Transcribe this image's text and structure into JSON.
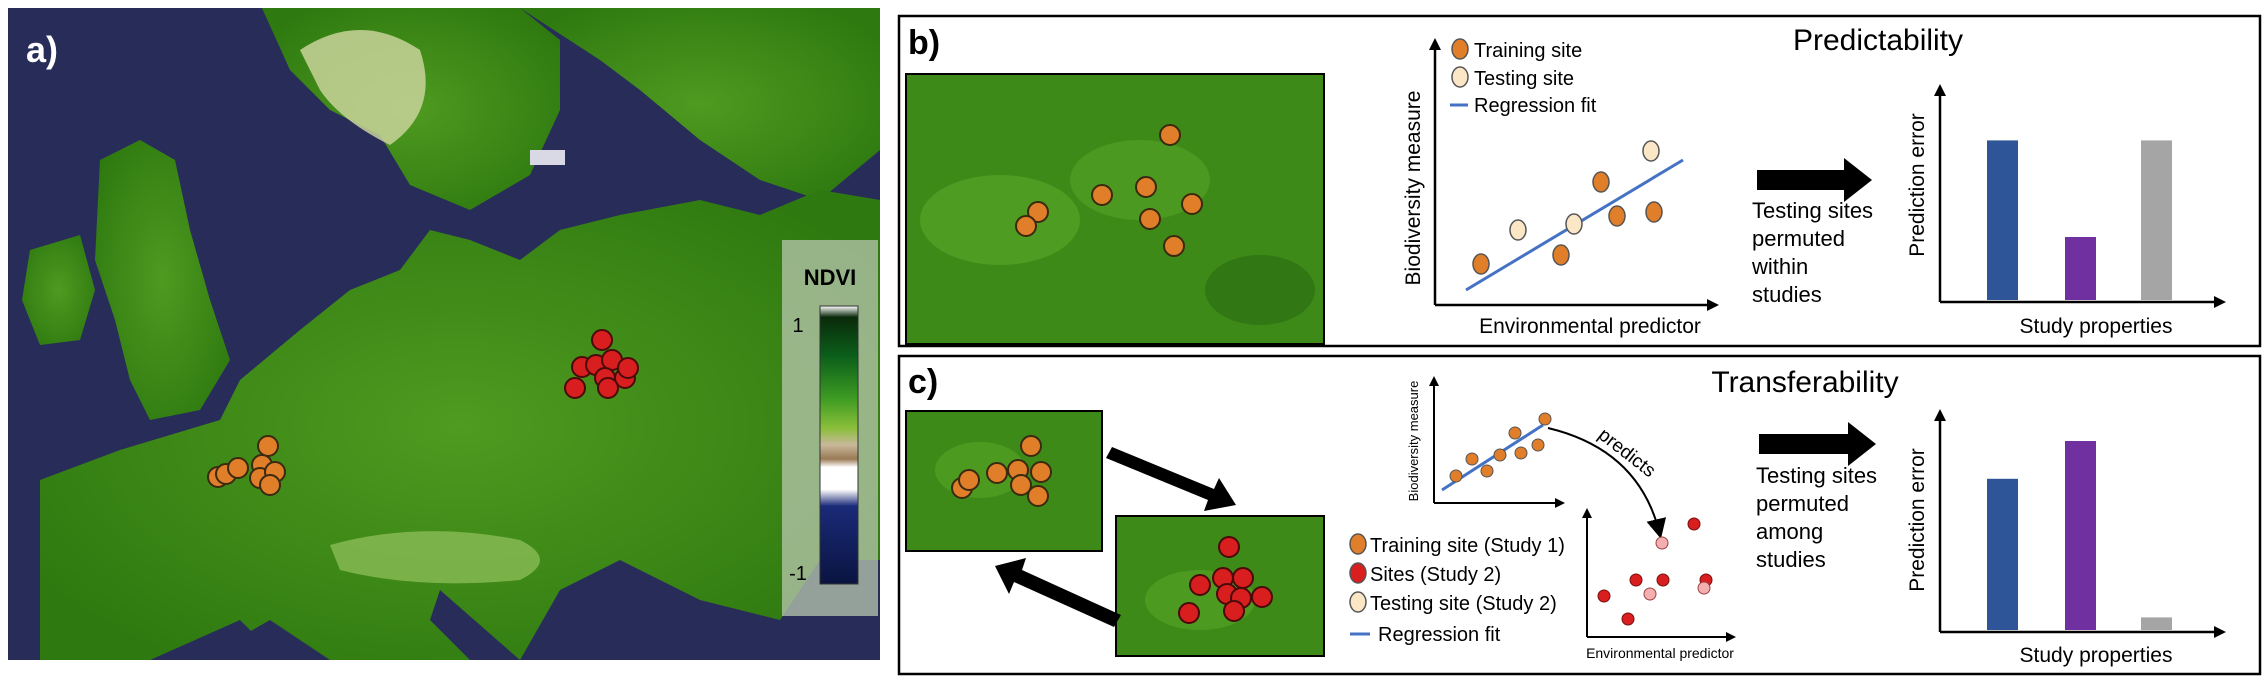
{
  "panel_a": {
    "label": "a)",
    "legend": {
      "title": "NDVI",
      "max_label": "1",
      "min_label": "-1"
    }
  },
  "panel_b": {
    "label": "b)",
    "title": "Predictability",
    "legend": {
      "training": "Training site",
      "testing": "Testing site",
      "fit": "Regression fit"
    },
    "scatter": {
      "ylabel": "Biodiversity measure",
      "xlabel": "Environmental predictor"
    },
    "arrow_text": [
      "Testing sites",
      "permuted",
      "within",
      "studies"
    ],
    "bars": {
      "ylabel": "Prediction error",
      "xlabel": "Study properties",
      "values": [
        0.76,
        0.3,
        0.76
      ]
    }
  },
  "panel_c": {
    "label": "c)",
    "title": "Transferability",
    "legend": {
      "training": "Training site (Study 1)",
      "sites2": "Sites (Study 2)",
      "testing2": "Testing site (Study 2)",
      "fit": "Regression fit"
    },
    "scatter": {
      "ylabel": "Biodiversity measure",
      "xlabel": "Environmental predictor",
      "predicts": "predicts"
    },
    "arrow_text": [
      "Testing sites",
      "permuted",
      "among",
      "studies"
    ],
    "bars": {
      "ylabel": "Prediction error",
      "xlabel": "Study properties",
      "values": [
        0.72,
        0.9,
        0.06
      ]
    }
  },
  "colors": {
    "sea": "#272d58",
    "land": "#3f8a16",
    "orange_site": "#e07e2a",
    "red_site": "#d81e1e",
    "testing_site": "#fbe7c6",
    "pink_site": "#f4b0b0",
    "fit_line": "#4472c4",
    "bar_blue": "#2e5597",
    "bar_purple": "#7030a0",
    "bar_gray": "#a5a5a5"
  }
}
